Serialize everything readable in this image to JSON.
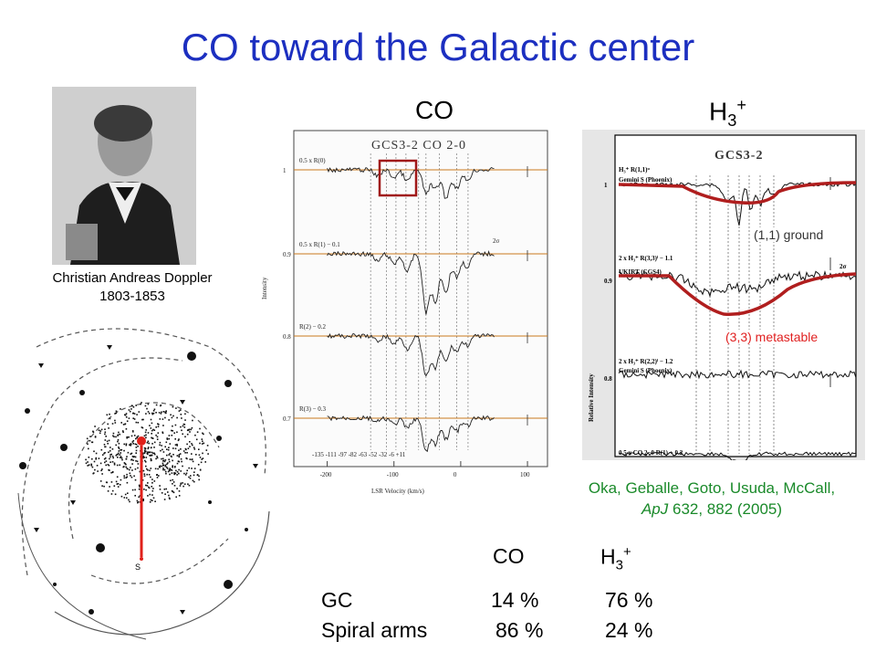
{
  "title": "CO toward the Galactic center",
  "portrait": {
    "caption_name": "Christian Andreas Doppler",
    "caption_years": "1803-1853"
  },
  "galaxy_map": {
    "sun_label": "S",
    "marker_color": "#e0201a"
  },
  "co_panel": {
    "heading": "CO",
    "plot_title": "GCS3-2   CO 2-0",
    "y_axis_label": "Intensity",
    "x_axis_label": "LSR Velocity (km/s)",
    "x_ticks": [
      "-200",
      "-100",
      "0",
      "100"
    ],
    "y_ticks": [
      "1",
      "0.9",
      "0.8",
      "0.7"
    ],
    "trace_labels": [
      "0.5 x R(0)",
      "0.5 x R(1) − 0.1",
      "R(2) − 0.2",
      "R(3) − 0.3"
    ],
    "velocity_marks": "-135 -111 -97 -82  -63 -52  -32  -6 +11",
    "sigma_label": "2σ",
    "highlight_color": "#a01818",
    "line_color": "#c8781e"
  },
  "h3_panel": {
    "heading_main": "H",
    "heading_sub": "3",
    "heading_sup": "+",
    "plot_title": "GCS3-2",
    "y_axis_label": "Relative Intensity",
    "y_ticks": [
      "1",
      "0.9",
      "0.8"
    ],
    "trace_labels": [
      "H₃⁺ R(1,1)ᵘ",
      "Gemini S (Phoenix)",
      "2 x H₃⁺ R(3,3)ˡ − 1.1",
      "UKIRT (CGS4)",
      "2 x H₃⁺ R(2,2)ˡ − 1.2",
      "Gemini S (Phoenix)",
      "0.5 x CO 2−0 R(1) + 0.2"
    ],
    "sigma_label": "2σ",
    "annot_ground": "(1,1) ground",
    "annot_metastable": "(3,3) metastable",
    "fit_color": "#b01e1e",
    "annot_red": "#e02020"
  },
  "reference": {
    "authors": "Oka, Geballe, Goto, Usuda, McCall,",
    "journal": "ApJ",
    "details": " 632, 882 (2005)"
  },
  "table": {
    "col_co": "CO",
    "col_h3_main": "H",
    "col_h3_sub": "3",
    "col_h3_sup": "+",
    "rows": [
      {
        "label": "GC",
        "co": "14 %",
        "h3": "76 %"
      },
      {
        "label": "Spiral arms",
        "co": "86 %",
        "h3": "24 %"
      }
    ]
  }
}
